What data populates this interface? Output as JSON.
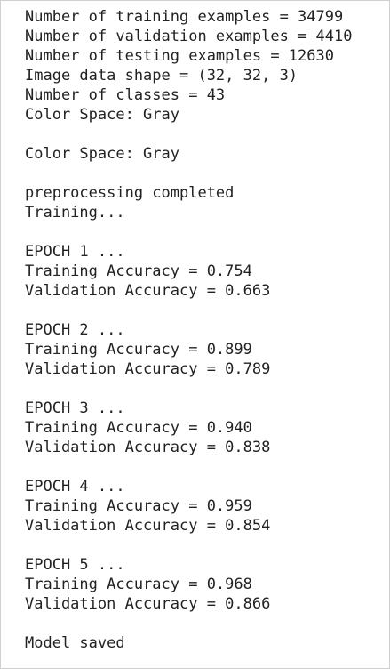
{
  "blocks": [
    {
      "lines": [
        "Number of training examples = 34799",
        "Number of validation examples = 4410",
        "Number of testing examples = 12630",
        "Image data shape = (32, 32, 3)",
        "Number of classes = 43",
        "Color Space: Gray"
      ]
    },
    {
      "lines": [
        "Color Space: Gray"
      ]
    },
    {
      "lines": [
        "preprocessing completed",
        "Training..."
      ]
    },
    {
      "lines": [
        "EPOCH 1 ...",
        "Training Accuracy = 0.754",
        "Validation Accuracy = 0.663"
      ]
    },
    {
      "lines": [
        "EPOCH 2 ...",
        "Training Accuracy = 0.899",
        "Validation Accuracy = 0.789"
      ]
    },
    {
      "lines": [
        "EPOCH 3 ...",
        "Training Accuracy = 0.940",
        "Validation Accuracy = 0.838"
      ]
    },
    {
      "lines": [
        "EPOCH 4 ...",
        "Training Accuracy = 0.959",
        "Validation Accuracy = 0.854"
      ]
    },
    {
      "lines": [
        "EPOCH 5 ...",
        "Training Accuracy = 0.968",
        "Validation Accuracy = 0.866"
      ]
    },
    {
      "lines": [
        "Model saved"
      ]
    }
  ]
}
